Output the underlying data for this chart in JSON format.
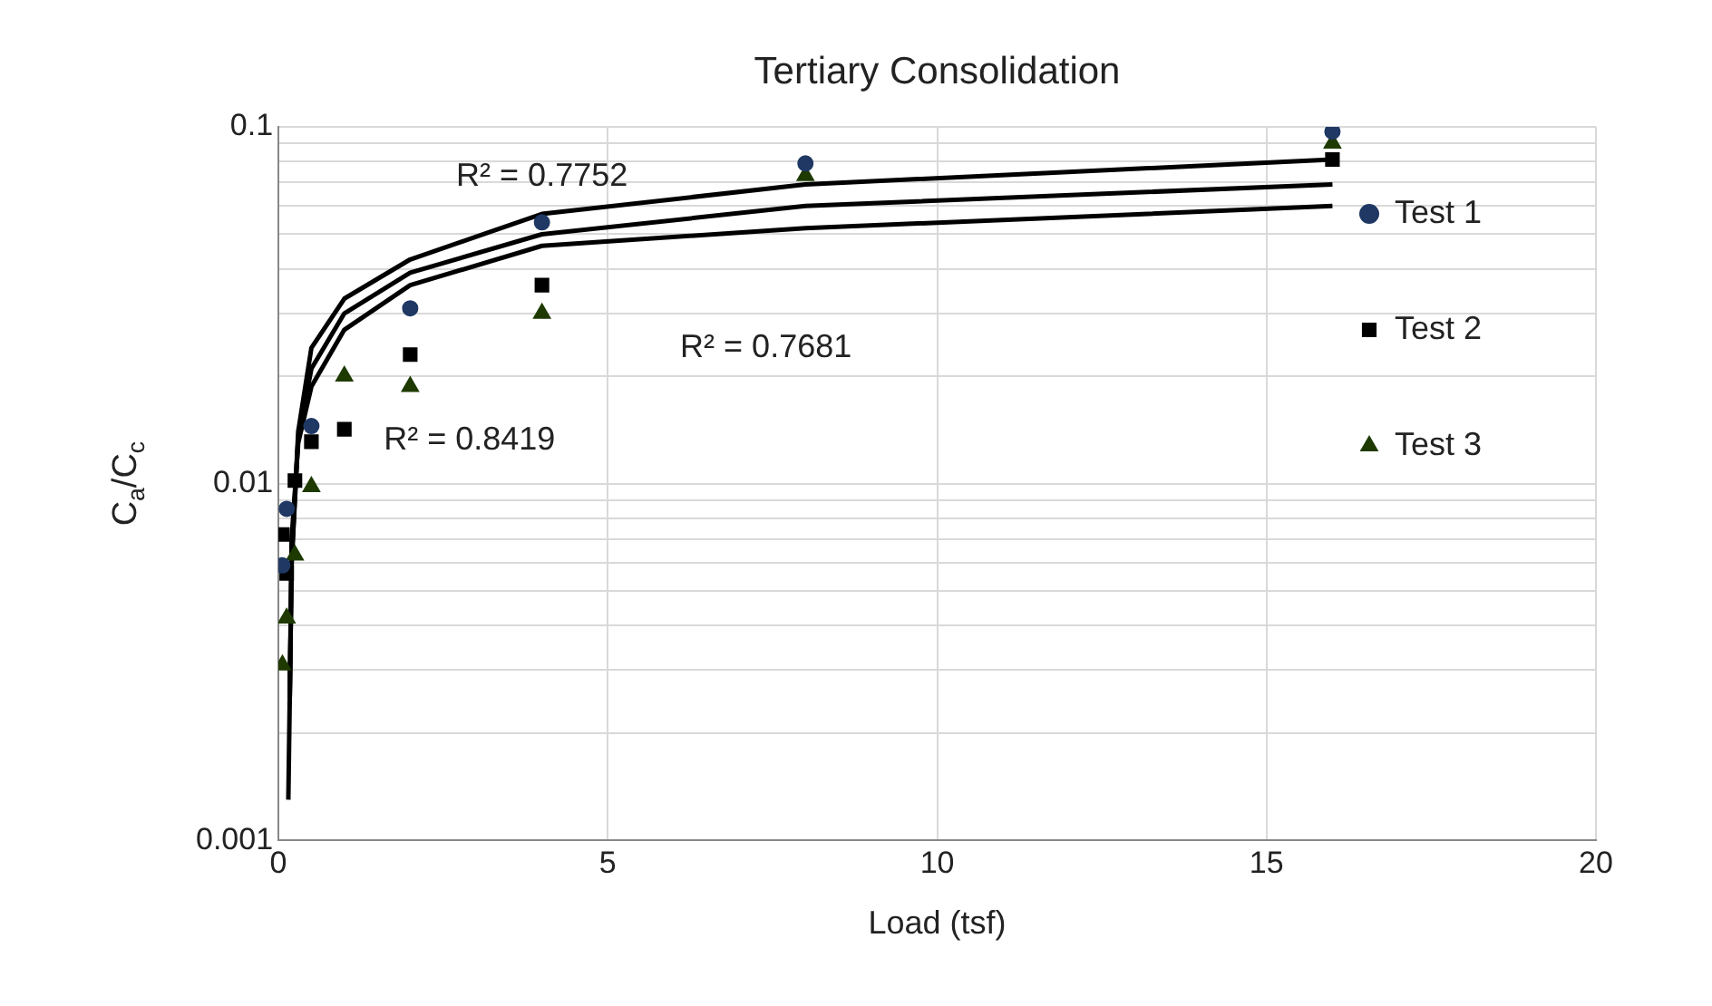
{
  "chart_data": {
    "type": "scatter",
    "title": "Tertiary Consolidation",
    "xlabel": "Load (tsf)",
    "ylabel": "C$_{a}$/C$_{c}$",
    "log": "y",
    "grid": true,
    "legend": "right",
    "xlim": [
      0,
      20
    ],
    "xticks": [
      0,
      5,
      10,
      15,
      20
    ],
    "ylim": [
      0.001,
      0.1
    ],
    "yticks": [
      0.001,
      {
        "value": 0.002,
        "label": null
      },
      {
        "value": 0.003,
        "label": null
      },
      {
        "value": 0.004,
        "label": null
      },
      {
        "value": 0.005,
        "label": null
      },
      {
        "value": 0.006,
        "label": null
      },
      {
        "value": 0.007,
        "label": null
      },
      {
        "value": 0.008,
        "label": null
      },
      {
        "value": 0.009,
        "label": null
      },
      0.01,
      {
        "value": 0.02,
        "label": null
      },
      {
        "value": 0.03,
        "label": null
      },
      {
        "value": 0.04,
        "label": null
      },
      {
        "value": 0.05,
        "label": null
      },
      {
        "value": 0.06,
        "label": null
      },
      {
        "value": 0.07,
        "label": null
      },
      {
        "value": 0.08,
        "label": null
      },
      {
        "value": 0.09,
        "label": null
      },
      0.1
    ],
    "series": [
      {
        "name": "Test 1",
        "color": "#1f3864",
        "marker": "circle",
        "x": [
          0.06,
          0.125,
          0.5,
          2,
          4,
          8,
          16
        ],
        "values": [
          0.0059,
          0.0085,
          0.0145,
          0.031,
          0.054,
          0.079,
          0.097
        ]
      },
      {
        "name": "Test 2",
        "color": "#000000",
        "marker": "square",
        "x": [
          0.06,
          0.125,
          0.25,
          0.5,
          1,
          2,
          4,
          16
        ],
        "values": [
          0.0072,
          0.0056,
          0.0102,
          0.0131,
          0.0142,
          0.023,
          0.036,
          0.081
        ]
      },
      {
        "name": "Test 3",
        "color": "#1e3a00",
        "marker": "triangle",
        "x": [
          0.06,
          0.125,
          0.25,
          0.5,
          1,
          2,
          4,
          8,
          16
        ],
        "values": [
          0.0031,
          0.0042,
          0.0063,
          0.0098,
          0.02,
          0.0187,
          0.03,
          0.073,
          0.09
        ]
      },
      {
        "type": "line",
        "color": "#000000",
        "marker": "none",
        "x": [
          0.15,
          0.2,
          0.3,
          0.5,
          1,
          2,
          4,
          8,
          16
        ],
        "values": [
          0.0013,
          0.006,
          0.014,
          0.024,
          0.033,
          0.0425,
          0.057,
          0.069,
          0.081
        ]
      },
      {
        "type": "line",
        "color": "#000000",
        "marker": "none",
        "x": [
          0.17,
          0.2,
          0.3,
          0.5,
          1,
          2,
          4,
          8,
          16
        ],
        "values": [
          0.0024,
          0.006,
          0.0135,
          0.021,
          0.03,
          0.039,
          0.05,
          0.06,
          0.069
        ]
      },
      {
        "type": "line",
        "color": "#000000",
        "marker": "none",
        "x": [
          0.17,
          0.2,
          0.3,
          0.5,
          1,
          2,
          4,
          8,
          16
        ],
        "values": [
          0.0024,
          0.007,
          0.013,
          0.0187,
          0.027,
          0.036,
          0.0464,
          0.052,
          0.06
        ]
      }
    ],
    "annotations": [
      "R² = 0.7752",
      "R² = 0.7681",
      "R² = 0.8419"
    ]
  }
}
